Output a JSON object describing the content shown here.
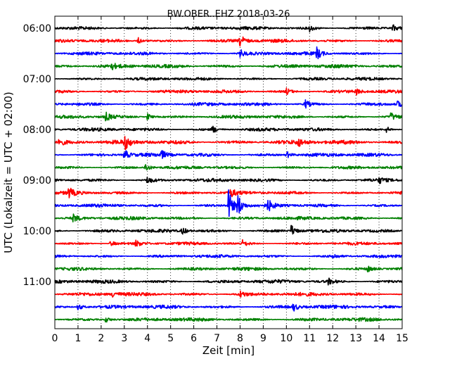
{
  "chart_data": {
    "type": "line",
    "title": "BW.OBER..EHZ 2018-03-26",
    "xlabel": "Zeit  [min]",
    "ylabel": "UTC (Lokalzeit = UTC + 02:00)",
    "xlim": [
      0,
      15
    ],
    "x_ticks": [
      "0",
      "1",
      "2",
      "3",
      "4",
      "5",
      "6",
      "7",
      "8",
      "9",
      "10",
      "11",
      "12",
      "13",
      "14",
      "15"
    ],
    "y_ticks": [
      "06:00",
      "07:00",
      "08:00",
      "09:00",
      "10:00",
      "11:00"
    ],
    "grid": "vertical dotted",
    "trace_start": "06:00",
    "trace_interval_min": 15,
    "trace_colors": [
      "#000000",
      "#ff0000",
      "#0000ff",
      "#008000"
    ],
    "series": [
      {
        "start": "06:00",
        "color": "#000000",
        "amplitude": 0.22,
        "events": [
          {
            "t": 11.0,
            "amp": 0.5
          },
          {
            "t": 14.6,
            "amp": 0.5
          }
        ]
      },
      {
        "start": "06:15",
        "color": "#ff0000",
        "amplitude": 0.22,
        "events": [
          {
            "t": 3.6,
            "amp": 0.5
          },
          {
            "t": 8.0,
            "amp": 1.0
          }
        ]
      },
      {
        "start": "06:30",
        "color": "#0000ff",
        "amplitude": 0.22,
        "events": [
          {
            "t": 8.0,
            "amp": 0.6
          },
          {
            "t": 11.3,
            "amp": 1.0
          }
        ]
      },
      {
        "start": "06:45",
        "color": "#008000",
        "amplitude": 0.24,
        "events": [
          {
            "t": 2.4,
            "amp": 0.6
          }
        ]
      },
      {
        "start": "07:00",
        "color": "#000000",
        "amplitude": 0.2,
        "events": []
      },
      {
        "start": "07:15",
        "color": "#ff0000",
        "amplitude": 0.22,
        "events": [
          {
            "t": 10.0,
            "amp": 0.5
          },
          {
            "t": 13.0,
            "amp": 0.5
          }
        ]
      },
      {
        "start": "07:30",
        "color": "#0000ff",
        "amplitude": 0.22,
        "events": [
          {
            "t": 10.8,
            "amp": 0.7
          },
          {
            "t": 14.8,
            "amp": 0.5
          }
        ]
      },
      {
        "start": "07:45",
        "color": "#008000",
        "amplitude": 0.22,
        "events": [
          {
            "t": 2.2,
            "amp": 0.7
          },
          {
            "t": 4.0,
            "amp": 0.6
          },
          {
            "t": 14.5,
            "amp": 0.6
          }
        ]
      },
      {
        "start": "08:00",
        "color": "#000000",
        "amplitude": 0.22,
        "events": [
          {
            "t": 6.8,
            "amp": 0.6
          },
          {
            "t": 14.3,
            "amp": 0.5
          }
        ]
      },
      {
        "start": "08:15",
        "color": "#ff0000",
        "amplitude": 0.28,
        "events": [
          {
            "t": 0.15,
            "amp": 0.8
          },
          {
            "t": 3.0,
            "amp": 1.2
          },
          {
            "t": 10.5,
            "amp": 0.6
          }
        ]
      },
      {
        "start": "08:30",
        "color": "#0000ff",
        "amplitude": 0.24,
        "events": [
          {
            "t": 3.0,
            "amp": 0.9
          },
          {
            "t": 4.6,
            "amp": 0.6
          },
          {
            "t": 10.0,
            "amp": 0.6
          }
        ]
      },
      {
        "start": "08:45",
        "color": "#008000",
        "amplitude": 0.2,
        "events": [
          {
            "t": 3.9,
            "amp": 0.7
          }
        ]
      },
      {
        "start": "09:00",
        "color": "#000000",
        "amplitude": 0.22,
        "events": [
          {
            "t": 4.0,
            "amp": 0.6
          },
          {
            "t": 14.0,
            "amp": 0.4
          }
        ]
      },
      {
        "start": "09:15",
        "color": "#ff0000",
        "amplitude": 0.22,
        "events": [
          {
            "t": 0.6,
            "amp": 0.8
          },
          {
            "t": 7.6,
            "amp": 0.6
          }
        ]
      },
      {
        "start": "09:30",
        "color": "#0000ff",
        "amplitude": 0.22,
        "events": [
          {
            "t": 7.5,
            "amp": 2.6
          },
          {
            "t": 7.9,
            "amp": 1.8
          },
          {
            "t": 9.2,
            "amp": 0.9
          }
        ]
      },
      {
        "start": "09:45",
        "color": "#008000",
        "amplitude": 0.22,
        "events": [
          {
            "t": 0.8,
            "amp": 0.6
          }
        ]
      },
      {
        "start": "10:00",
        "color": "#000000",
        "amplitude": 0.22,
        "events": [
          {
            "t": 5.5,
            "amp": 0.6
          },
          {
            "t": 10.2,
            "amp": 1.0
          }
        ]
      },
      {
        "start": "10:15",
        "color": "#ff0000",
        "amplitude": 0.2,
        "events": [
          {
            "t": 2.4,
            "amp": 0.5
          },
          {
            "t": 3.5,
            "amp": 0.5
          },
          {
            "t": 8.1,
            "amp": 0.5
          }
        ]
      },
      {
        "start": "10:30",
        "color": "#0000ff",
        "amplitude": 0.2,
        "events": [
          {
            "t": 12.0,
            "amp": 0.4
          }
        ]
      },
      {
        "start": "10:45",
        "color": "#008000",
        "amplitude": 0.22,
        "events": [
          {
            "t": 13.5,
            "amp": 0.5
          }
        ]
      },
      {
        "start": "11:00",
        "color": "#000000",
        "amplitude": 0.24,
        "events": [
          {
            "t": 11.8,
            "amp": 0.5
          }
        ]
      },
      {
        "start": "11:15",
        "color": "#ff0000",
        "amplitude": 0.24,
        "events": [
          {
            "t": 2.5,
            "amp": 0.5
          },
          {
            "t": 8.0,
            "amp": 0.5
          }
        ]
      },
      {
        "start": "11:30",
        "color": "#0000ff",
        "amplitude": 0.24,
        "events": [
          {
            "t": 1.0,
            "amp": 0.6
          },
          {
            "t": 10.3,
            "amp": 0.6
          }
        ]
      },
      {
        "start": "11:45",
        "color": "#008000",
        "amplitude": 0.24,
        "events": [
          {
            "t": 2.2,
            "amp": 0.5
          }
        ]
      }
    ]
  }
}
